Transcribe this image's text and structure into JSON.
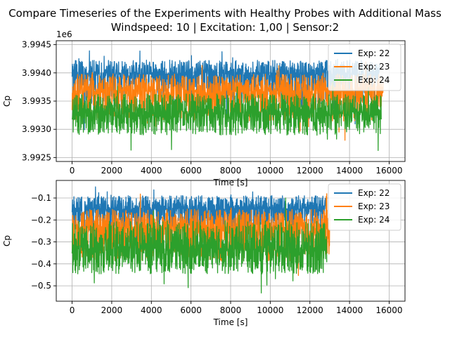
{
  "title_line1": "Compare Timeseries of the Experiments with Healthy Probes with Additional Mass",
  "title_line2": "Windspeed: 10 | Excitation: 1,00 | Sensor:2",
  "colors": {
    "Exp: 22": "#1f77b4",
    "Exp: 23": "#ff7f0e",
    "Exp: 24": "#2ca02c"
  },
  "chart_data": [
    {
      "type": "line",
      "xlabel": "Time [s]",
      "ylabel": "Cp",
      "offset_text": "1e6",
      "xlim": [
        -800,
        16800
      ],
      "ylim": [
        3992430,
        3994570
      ],
      "xticks": [
        0,
        2000,
        4000,
        6000,
        8000,
        10000,
        12000,
        14000,
        16000
      ],
      "yticks": [
        3992500,
        3993000,
        3993500,
        3994000,
        3994500
      ],
      "ytick_labels": [
        "3.9925",
        "3.9930",
        "3.9935",
        "3.9940",
        "3.9945"
      ],
      "grid": true,
      "legend": "top-right",
      "series": [
        {
          "name": "Exp: 22",
          "x_range": [
            0,
            15500
          ],
          "mean": 3993980,
          "min": 3992880,
          "max": 3994430
        },
        {
          "name": "Exp: 23",
          "x_range": [
            0,
            15700
          ],
          "mean": 3993680,
          "min": 3992700,
          "max": 3994230
        },
        {
          "name": "Exp: 24",
          "x_range": [
            0,
            15600
          ],
          "mean": 3993300,
          "min": 3992560,
          "max": 3993900
        }
      ]
    },
    {
      "type": "line",
      "xlabel": "Time [s]",
      "ylabel": "Cp",
      "xlim": [
        -800,
        16800
      ],
      "ylim": [
        -0.57,
        -0.02
      ],
      "xticks": [
        0,
        2000,
        4000,
        6000,
        8000,
        10000,
        12000,
        14000,
        16000
      ],
      "yticks": [
        -0.5,
        -0.4,
        -0.3,
        -0.2,
        -0.1
      ],
      "ytick_labels": [
        "−0.5",
        "−0.4",
        "−0.3",
        "−0.2",
        "−0.1"
      ],
      "grid": true,
      "legend": "top-right",
      "series": [
        {
          "name": "Exp: 22",
          "x_range": [
            0,
            12800
          ],
          "mean": -0.15,
          "min": -0.36,
          "max": -0.04
        },
        {
          "name": "Exp: 23",
          "x_range": [
            0,
            13000
          ],
          "mean": -0.24,
          "min": -0.51,
          "max": -0.08
        },
        {
          "name": "Exp: 24",
          "x_range": [
            0,
            12850
          ],
          "mean": -0.33,
          "min": -0.54,
          "max": -0.1
        }
      ]
    }
  ]
}
